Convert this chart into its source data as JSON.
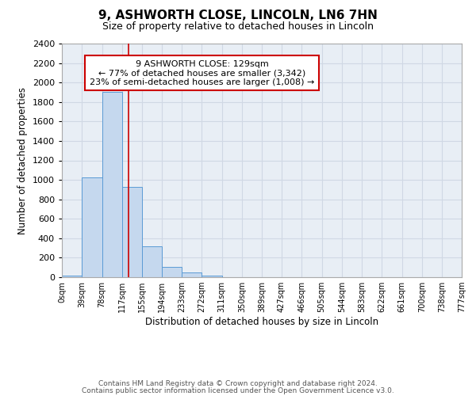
{
  "title": "9, ASHWORTH CLOSE, LINCOLN, LN6 7HN",
  "subtitle": "Size of property relative to detached houses in Lincoln",
  "xlabel": "Distribution of detached houses by size in Lincoln",
  "ylabel": "Number of detached properties",
  "bin_edges": [
    0,
    39,
    78,
    117,
    155,
    194,
    233,
    272,
    311,
    350,
    389,
    427,
    466,
    505,
    544,
    583,
    622,
    661,
    700,
    738,
    777
  ],
  "bin_counts": [
    20,
    1025,
    1900,
    930,
    320,
    105,
    50,
    20,
    0,
    0,
    0,
    0,
    0,
    0,
    0,
    0,
    0,
    0,
    0,
    0
  ],
  "bar_color": "#c5d8ee",
  "bar_edge_color": "#5b9bd5",
  "red_line_x": 129,
  "ylim": [
    0,
    2400
  ],
  "yticks": [
    0,
    200,
    400,
    600,
    800,
    1000,
    1200,
    1400,
    1600,
    1800,
    2000,
    2200,
    2400
  ],
  "xtick_labels": [
    "0sqm",
    "39sqm",
    "78sqm",
    "117sqm",
    "155sqm",
    "194sqm",
    "233sqm",
    "272sqm",
    "311sqm",
    "350sqm",
    "389sqm",
    "427sqm",
    "466sqm",
    "505sqm",
    "544sqm",
    "583sqm",
    "622sqm",
    "661sqm",
    "700sqm",
    "738sqm",
    "777sqm"
  ],
  "annotation_title": "9 ASHWORTH CLOSE: 129sqm",
  "annotation_line1": "← 77% of detached houses are smaller (3,342)",
  "annotation_line2": "23% of semi-detached houses are larger (1,008) →",
  "annotation_box_color": "#ffffff",
  "annotation_box_edge": "#cc0000",
  "footer_line1": "Contains HM Land Registry data © Crown copyright and database right 2024.",
  "footer_line2": "Contains public sector information licensed under the Open Government Licence v3.0.",
  "plot_bg_color": "#e8eef5",
  "fig_bg_color": "#ffffff",
  "grid_color": "#d0d8e4"
}
